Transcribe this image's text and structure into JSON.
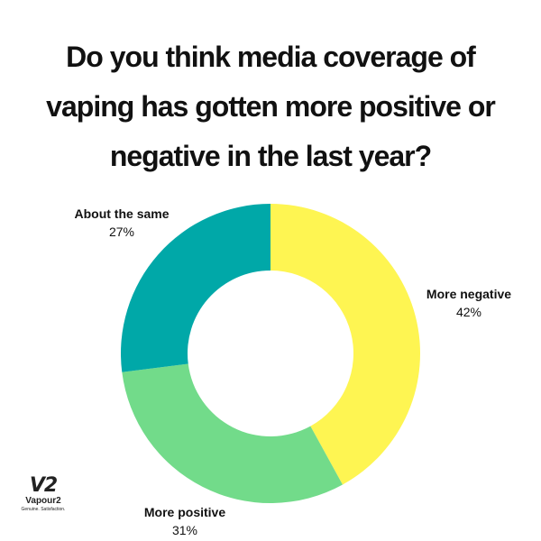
{
  "chart_data": {
    "type": "pie",
    "donut": true,
    "title": [
      "Do you think media coverage of",
      "vaping has gotten more positive or",
      "negative in the last year?"
    ],
    "categories": [
      "More negative",
      "More positive",
      "About the same"
    ],
    "values": [
      42,
      31,
      27
    ],
    "value_labels": [
      "42%",
      "31%",
      "27%"
    ],
    "colors": [
      "#FEF552",
      "#72DB8A",
      "#00A8A8"
    ],
    "start": "top",
    "direction": "clockwise"
  },
  "logo": {
    "mark": "V2",
    "name": "Vapour2",
    "tagline": "Genuine. Satisfaction."
  }
}
